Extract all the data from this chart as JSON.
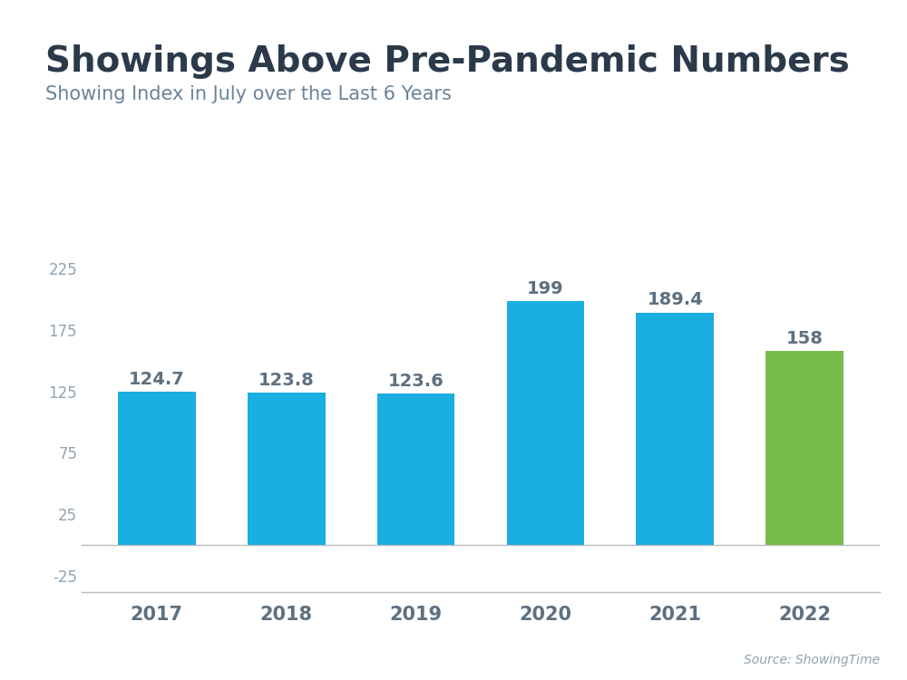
{
  "title": "Showings Above Pre-Pandemic Numbers",
  "subtitle": "Showing Index in July over the Last 6 Years",
  "source": "Source: ShowingTime",
  "categories": [
    "2017",
    "2018",
    "2019",
    "2020",
    "2021",
    "2022"
  ],
  "values": [
    124.7,
    123.8,
    123.6,
    199,
    189.4,
    158
  ],
  "bar_colors": [
    "#1BAEE1",
    "#1BAEE1",
    "#1BAEE1",
    "#1BAEE1",
    "#1BAEE1",
    "#77BB4A"
  ],
  "title_color": "#2B3A4A",
  "subtitle_color": "#6B8499",
  "tick_color": "#8FA3B1",
  "label_color": "#5D7080",
  "yticks": [
    -25,
    25,
    75,
    125,
    175,
    225
  ],
  "ylim": [
    -38,
    250
  ],
  "background_color": "#FFFFFF",
  "header_bar_color": "#3AB5D8",
  "title_fontsize": 28,
  "subtitle_fontsize": 15,
  "label_fontsize": 14,
  "source_fontsize": 10
}
